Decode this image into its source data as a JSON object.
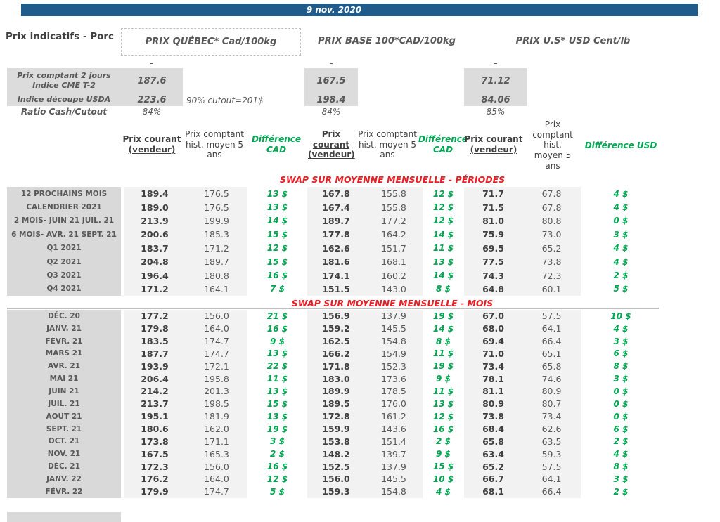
{
  "colors": {
    "banner_blue": "#1F5C8C",
    "heading_red": "#EC1C24",
    "diff_green": "#00A651",
    "label_gray": "#D9D9D9",
    "value_gray": "#F2F2F2"
  },
  "topbar": {
    "date": "9 nov. 2020"
  },
  "page": {
    "title": "Prix indicatifs - Porc"
  },
  "sections": {
    "quebec": "PRIX QUÉBEC* Cad/100kg",
    "base": "PRIX BASE 100*CAD/100kg",
    "us": "PRIX U.S* USD Cent/lb"
  },
  "spot": {
    "dash": "-",
    "rows": [
      {
        "label": "Prix comptant 2 jours\nIndice CME T-2",
        "quebec": "187.6",
        "base": "167.5",
        "us": "71.12"
      },
      {
        "label": "Indice découpe USDA",
        "quebec": "223.6",
        "note": "90% cutout=201$",
        "base": "198.4",
        "us": "84.06"
      },
      {
        "label": "Ratio Cash/Cutout",
        "quebec": "84%",
        "base": "84%",
        "us": "85%"
      }
    ]
  },
  "table": {
    "headers": {
      "prix_courant": "Prix courant (vendeur)",
      "prix_comptant": "Prix comptant hist. moyen 5 ans",
      "diff_cad": "Différence CAD",
      "diff_usd": "Différence USD"
    },
    "sections": [
      {
        "heading": "SWAP SUR MOYENNE MENSUELLE - PÉRIODES",
        "rows": [
          {
            "label": "12 PROCHAINS MOIS",
            "q": [
              "189.4",
              "176.5",
              "13 $"
            ],
            "b": [
              "167.8",
              "155.8",
              "12 $"
            ],
            "u": [
              "71.7",
              "67.8",
              "4 $"
            ]
          },
          {
            "label": "CALENDRIER 2021",
            "q": [
              "189.0",
              "176.5",
              "13 $"
            ],
            "b": [
              "167.4",
              "155.8",
              "12 $"
            ],
            "u": [
              "71.5",
              "67.8",
              "4 $"
            ]
          },
          {
            "label": "2 MOIS- JUIN 21 JUIL. 21",
            "q": [
              "213.9",
              "199.9",
              "14 $"
            ],
            "b": [
              "189.7",
              "177.2",
              "12 $"
            ],
            "u": [
              "81.0",
              "80.8",
              "0 $"
            ]
          },
          {
            "label": "6 MOIS- AVR. 21 SEPT. 21",
            "q": [
              "200.6",
              "185.3",
              "15 $"
            ],
            "b": [
              "177.8",
              "164.2",
              "14 $"
            ],
            "u": [
              "75.9",
              "73.0",
              "3 $"
            ]
          },
          {
            "label": "Q1 2021",
            "q": [
              "183.7",
              "171.2",
              "12 $"
            ],
            "b": [
              "162.6",
              "151.7",
              "11 $"
            ],
            "u": [
              "69.5",
              "65.2",
              "4 $"
            ]
          },
          {
            "label": "Q2 2021",
            "q": [
              "204.8",
              "189.7",
              "15 $"
            ],
            "b": [
              "181.6",
              "168.1",
              "13 $"
            ],
            "u": [
              "77.5",
              "73.8",
              "4 $"
            ]
          },
          {
            "label": "Q3 2021",
            "q": [
              "196.4",
              "180.8",
              "16 $"
            ],
            "b": [
              "174.1",
              "160.2",
              "14 $"
            ],
            "u": [
              "74.3",
              "72.3",
              "2 $"
            ]
          },
          {
            "label": "Q4 2021",
            "q": [
              "171.2",
              "164.1",
              "7 $"
            ],
            "b": [
              "151.5",
              "143.0",
              "8 $"
            ],
            "u": [
              "64.8",
              "60.1",
              "5 $"
            ]
          }
        ]
      },
      {
        "heading": "SWAP SUR MOYENNE MENSUELLE - MOIS",
        "rows": [
          {
            "label": "DÉC. 20",
            "q": [
              "177.2",
              "156.0",
              "21 $"
            ],
            "b": [
              "156.9",
              "137.9",
              "19 $"
            ],
            "u": [
              "67.0",
              "57.5",
              "10 $"
            ]
          },
          {
            "label": "JANV. 21",
            "q": [
              "179.8",
              "164.0",
              "16 $"
            ],
            "b": [
              "159.2",
              "145.5",
              "14 $"
            ],
            "u": [
              "68.0",
              "64.1",
              "4 $"
            ]
          },
          {
            "label": "FÉVR. 21",
            "q": [
              "183.5",
              "174.7",
              "9 $"
            ],
            "b": [
              "162.5",
              "154.8",
              "8 $"
            ],
            "u": [
              "69.4",
              "66.4",
              "3 $"
            ]
          },
          {
            "label": "MARS 21",
            "q": [
              "187.7",
              "174.7",
              "13 $"
            ],
            "b": [
              "166.2",
              "154.9",
              "11 $"
            ],
            "u": [
              "71.0",
              "65.1",
              "6 $"
            ]
          },
          {
            "label": "AVR. 21",
            "q": [
              "193.9",
              "172.1",
              "22 $"
            ],
            "b": [
              "171.8",
              "152.3",
              "19 $"
            ],
            "u": [
              "73.4",
              "65.8",
              "8 $"
            ]
          },
          {
            "label": "MAI 21",
            "q": [
              "206.4",
              "195.8",
              "11 $"
            ],
            "b": [
              "183.0",
              "173.6",
              "9 $"
            ],
            "u": [
              "78.1",
              "74.6",
              "3 $"
            ]
          },
          {
            "label": "JUIN 21",
            "q": [
              "214.2",
              "201.3",
              "13 $"
            ],
            "b": [
              "189.9",
              "178.5",
              "11 $"
            ],
            "u": [
              "81.1",
              "80.9",
              "0 $"
            ]
          },
          {
            "label": "JUIL. 21",
            "q": [
              "213.7",
              "198.5",
              "15 $"
            ],
            "b": [
              "189.5",
              "176.0",
              "13 $"
            ],
            "u": [
              "80.9",
              "80.7",
              "0 $"
            ]
          },
          {
            "label": "AOÛT 21",
            "q": [
              "195.1",
              "181.9",
              "13 $"
            ],
            "b": [
              "172.8",
              "161.2",
              "12 $"
            ],
            "u": [
              "73.8",
              "73.4",
              "0 $"
            ]
          },
          {
            "label": "SEPT. 21",
            "q": [
              "180.6",
              "162.0",
              "19 $"
            ],
            "b": [
              "159.9",
              "143.6",
              "16 $"
            ],
            "u": [
              "68.4",
              "62.6",
              "6 $"
            ]
          },
          {
            "label": "OCT. 21",
            "q": [
              "173.8",
              "171.1",
              "3 $"
            ],
            "b": [
              "153.8",
              "151.4",
              "2 $"
            ],
            "u": [
              "65.8",
              "63.5",
              "2 $"
            ]
          },
          {
            "label": "NOV. 21",
            "q": [
              "167.5",
              "165.3",
              "2 $"
            ],
            "b": [
              "148.2",
              "139.7",
              "9 $"
            ],
            "u": [
              "63.4",
              "59.3",
              "4 $"
            ]
          },
          {
            "label": "DÉC. 21",
            "q": [
              "172.3",
              "156.0",
              "16 $"
            ],
            "b": [
              "152.5",
              "137.9",
              "15 $"
            ],
            "u": [
              "65.2",
              "57.5",
              "8 $"
            ]
          },
          {
            "label": "JANV. 22",
            "q": [
              "176.2",
              "164.0",
              "12 $"
            ],
            "b": [
              "156.0",
              "145.5",
              "10 $"
            ],
            "u": [
              "66.7",
              "64.1",
              "3 $"
            ]
          },
          {
            "label": "FÉVR. 22",
            "q": [
              "179.9",
              "174.7",
              "5 $"
            ],
            "b": [
              "159.3",
              "154.8",
              "4 $"
            ],
            "u": [
              "68.1",
              "66.4",
              "2 $"
            ]
          }
        ]
      }
    ]
  }
}
